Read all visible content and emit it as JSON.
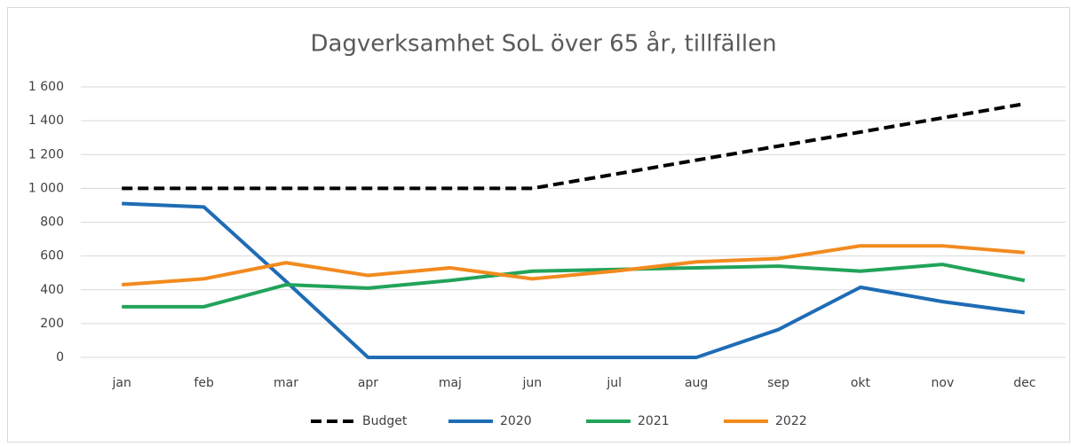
{
  "chart_data": {
    "type": "line",
    "title": "Dagverksamhet SoL över 65 år, tillfällen",
    "categories": [
      "jan",
      "feb",
      "mar",
      "apr",
      "maj",
      "jun",
      "jul",
      "aug",
      "sep",
      "okt",
      "nov",
      "dec"
    ],
    "series": [
      {
        "name": "Budget",
        "color": "#000000",
        "dashed": true,
        "values": [
          1000,
          1000,
          1000,
          1000,
          1000,
          1000,
          1083,
          1167,
          1250,
          1333,
          1417,
          1500
        ]
      },
      {
        "name": "2020",
        "color": "#1f6cb5",
        "values": [
          910,
          890,
          450,
          0,
          0,
          0,
          0,
          0,
          165,
          415,
          330,
          265
        ]
      },
      {
        "name": "2021",
        "color": "#21a35a",
        "values": [
          300,
          300,
          430,
          410,
          455,
          510,
          520,
          530,
          540,
          510,
          550,
          455
        ]
      },
      {
        "name": "2022",
        "color": "#f28a1e",
        "values": [
          430,
          465,
          560,
          485,
          530,
          465,
          510,
          565,
          585,
          660,
          660,
          620
        ]
      }
    ],
    "ylim": [
      0,
      1600
    ],
    "yticks": [
      0,
      200,
      400,
      600,
      800,
      {
        "value": 1000,
        "label": "1 000"
      },
      {
        "value": 1200,
        "label": "1 200"
      },
      {
        "value": 1400,
        "label": "1 400"
      },
      {
        "value": 1600,
        "label": "1 600"
      }
    ],
    "grid": true,
    "legend": "bottom"
  }
}
